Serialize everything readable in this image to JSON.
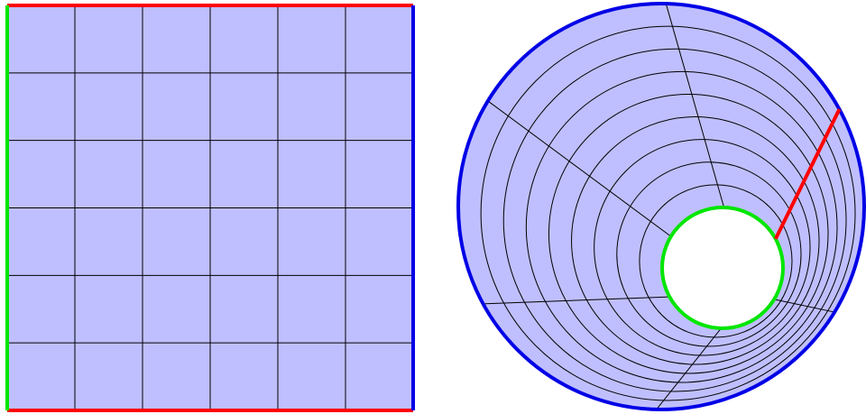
{
  "colors": {
    "fill": "#bfbfff",
    "grid_line": "#000000",
    "edge_red": "#ff0000",
    "edge_green": "#00e600",
    "edge_blue": "#0000e6",
    "hole": "#ffffff"
  },
  "square_grid": {
    "columns": 6,
    "rows": 6,
    "edges": {
      "top": "red",
      "bottom": "red",
      "left": "green",
      "right": "blue"
    }
  },
  "annulus_grid": {
    "radial_divisions": 9,
    "angular_divisions": 6,
    "inner_boundary": "green",
    "outer_boundary": "blue",
    "seam": "red"
  }
}
